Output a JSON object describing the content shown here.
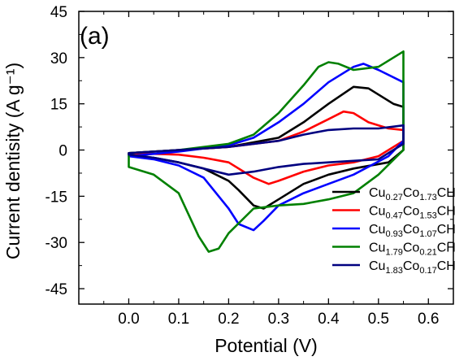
{
  "chart_data": {
    "type": "line",
    "panel_label": "(a)",
    "xlabel": "Potential (V)",
    "ylabel": "Current dentisity (A g⁻¹)",
    "xlim": [
      -0.1,
      0.65
    ],
    "ylim": [
      -50,
      45
    ],
    "xticks": [
      {
        "value": 0.0,
        "label": "0.0"
      },
      {
        "value": 0.1,
        "label": "0.1"
      },
      {
        "value": 0.2,
        "label": "0.2"
      },
      {
        "value": 0.3,
        "label": "0.3"
      },
      {
        "value": 0.4,
        "label": "0.4"
      },
      {
        "value": 0.5,
        "label": "0.5"
      },
      {
        "value": 0.6,
        "label": "0.6"
      }
    ],
    "yticks": [
      {
        "value": 45,
        "label": "45"
      },
      {
        "value": 30,
        "label": "30"
      },
      {
        "value": 15,
        "label": "15"
      },
      {
        "value": 0,
        "label": "0"
      },
      {
        "value": -15,
        "label": "-15"
      },
      {
        "value": -30,
        "label": "-30"
      },
      {
        "value": -45,
        "label": "-45"
      }
    ],
    "grid": false,
    "legend_position": "bottom-right",
    "series": [
      {
        "name": "Cu0.27Co1.73CH",
        "legend": [
          {
            "t": "Cu",
            "sub": false
          },
          {
            "t": "0.27",
            "sub": true
          },
          {
            "t": "Co",
            "sub": false
          },
          {
            "t": "1.73",
            "sub": true
          },
          {
            "t": "CH",
            "sub": false
          }
        ],
        "color": "#000000",
        "x": [
          0.0,
          0.1,
          0.2,
          0.3,
          0.35,
          0.4,
          0.45,
          0.48,
          0.5,
          0.53,
          0.55,
          0.55,
          0.52,
          0.45,
          0.4,
          0.35,
          0.3,
          0.27,
          0.25,
          0.22,
          0.2,
          0.15,
          0.1,
          0.05,
          0.0
        ],
        "y": [
          -1,
          0,
          1,
          4,
          9,
          15,
          20.5,
          20,
          18,
          15,
          14,
          0,
          -4,
          -6,
          -8,
          -11,
          -16,
          -19,
          -18,
          -13,
          -10,
          -6,
          -4,
          -2.5,
          -1.5
        ]
      },
      {
        "name": "Cu0.47Co1.53CH",
        "legend": [
          {
            "t": "Cu",
            "sub": false
          },
          {
            "t": "0.47",
            "sub": true
          },
          {
            "t": "Co",
            "sub": false
          },
          {
            "t": "1.53",
            "sub": true
          },
          {
            "t": "CH",
            "sub": false
          }
        ],
        "color": "#ff0000",
        "x": [
          0.0,
          0.1,
          0.2,
          0.3,
          0.35,
          0.4,
          0.43,
          0.45,
          0.48,
          0.52,
          0.55,
          0.55,
          0.5,
          0.45,
          0.4,
          0.35,
          0.3,
          0.28,
          0.25,
          0.2,
          0.15,
          0.1,
          0.0
        ],
        "y": [
          -1,
          0,
          1,
          3,
          6,
          10,
          12.5,
          12,
          9,
          7,
          6.5,
          3,
          -2,
          -4,
          -5,
          -7,
          -10,
          -11,
          -9,
          -4,
          -2.5,
          -1.5,
          -1
        ]
      },
      {
        "name": "Cu0.93Co1.07CH",
        "legend": [
          {
            "t": "Cu",
            "sub": false
          },
          {
            "t": "0.93",
            "sub": true
          },
          {
            "t": "Co",
            "sub": false
          },
          {
            "t": "1.07",
            "sub": true
          },
          {
            "t": "CH",
            "sub": false
          }
        ],
        "color": "#0000ff",
        "x": [
          0.0,
          0.1,
          0.2,
          0.25,
          0.3,
          0.35,
          0.4,
          0.45,
          0.47,
          0.5,
          0.55,
          0.55,
          0.52,
          0.45,
          0.4,
          0.35,
          0.3,
          0.27,
          0.25,
          0.22,
          0.2,
          0.15,
          0.1,
          0.05,
          0.0
        ],
        "y": [
          -2,
          -0.5,
          1.5,
          4,
          9,
          15,
          22,
          27,
          28,
          26,
          22,
          3,
          -2,
          -8,
          -11,
          -14,
          -18,
          -23,
          -26,
          -24,
          -19,
          -9,
          -5,
          -3,
          -2
        ]
      },
      {
        "name": "Cu1.79Co0.21CH",
        "legend": [
          {
            "t": "Cu",
            "sub": false
          },
          {
            "t": "1.79",
            "sub": true
          },
          {
            "t": "Co",
            "sub": false
          },
          {
            "t": "0.21",
            "sub": true
          },
          {
            "t": "CH",
            "sub": false
          }
        ],
        "color": "#008000",
        "x": [
          0.0,
          0.1,
          0.2,
          0.25,
          0.3,
          0.35,
          0.38,
          0.4,
          0.42,
          0.45,
          0.5,
          0.55,
          0.55,
          0.5,
          0.45,
          0.4,
          0.35,
          0.3,
          0.25,
          0.2,
          0.18,
          0.16,
          0.14,
          0.1,
          0.05,
          0.0
        ],
        "y": [
          -1,
          0,
          2,
          5,
          12,
          21,
          27,
          28.5,
          28,
          26,
          27,
          32,
          0,
          -8,
          -14,
          -16,
          -17.5,
          -18,
          -19,
          -27,
          -32,
          -33,
          -28,
          -14,
          -8,
          -5.5
        ]
      },
      {
        "name": "Cu1.83Co0.17CH",
        "legend": [
          {
            "t": "Cu",
            "sub": false
          },
          {
            "t": "1.83",
            "sub": true
          },
          {
            "t": "Co",
            "sub": false
          },
          {
            "t": "0.17",
            "sub": true
          },
          {
            "t": "CH",
            "sub": false
          }
        ],
        "color": "#000080",
        "x": [
          0.0,
          0.1,
          0.2,
          0.3,
          0.35,
          0.4,
          0.45,
          0.5,
          0.55,
          0.55,
          0.5,
          0.45,
          0.4,
          0.35,
          0.3,
          0.25,
          0.2,
          0.15,
          0.1,
          0.05,
          0.0
        ],
        "y": [
          -1,
          0,
          1,
          3,
          5,
          6.5,
          7,
          7,
          8,
          2,
          -3,
          -3.5,
          -4,
          -4.5,
          -5.5,
          -7,
          -8,
          -6,
          -4,
          -2.5,
          -1.5
        ]
      }
    ]
  }
}
